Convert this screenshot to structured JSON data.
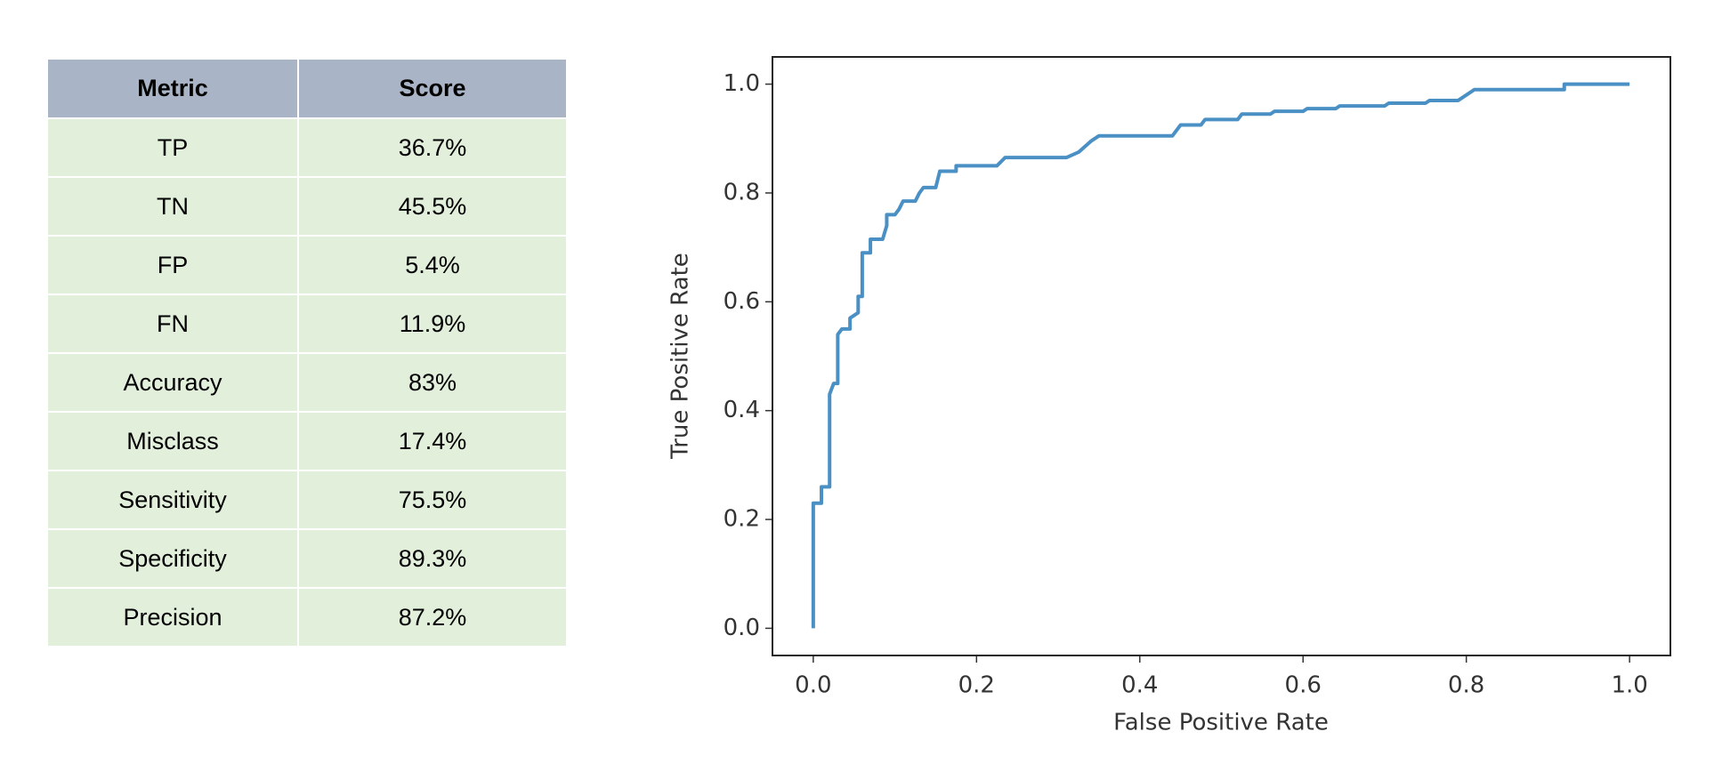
{
  "table": {
    "header": [
      "Metric",
      "Score"
    ],
    "rows": [
      [
        "TP",
        "36.7%"
      ],
      [
        "TN",
        "45.5%"
      ],
      [
        "FP",
        "5.4%"
      ],
      [
        "FN",
        "11.9%"
      ],
      [
        "Accuracy",
        "83%"
      ],
      [
        "Misclass",
        "17.4%"
      ],
      [
        "Sensitivity",
        "75.5%"
      ],
      [
        "Specificity",
        "89.3%"
      ],
      [
        "Precision",
        "87.2%"
      ]
    ]
  },
  "chart_data": {
    "type": "line",
    "x_label": "False Positive Rate",
    "y_label": "True Positive Rate",
    "xlim": [
      -0.05,
      1.05
    ],
    "ylim": [
      -0.05,
      1.05
    ],
    "xticks": [
      {
        "value": 0,
        "label": "0.0"
      },
      0.2,
      0.4,
      0.6,
      0.8,
      {
        "value": 1,
        "label": "1.0"
      }
    ],
    "yticks": [
      {
        "value": 0,
        "label": "0.0"
      },
      0.2,
      0.4,
      0.6,
      0.8,
      {
        "value": 1,
        "label": "1.0"
      }
    ],
    "grid": false,
    "x": [
      0,
      0,
      0.01,
      0.01,
      0.02,
      0.02,
      0.025,
      0.03,
      0.03,
      0.035,
      0.045,
      0.045,
      0.055,
      0.055,
      0.06,
      0.06,
      0.07,
      0.07,
      0.085,
      0.09,
      0.09,
      0.1,
      0.105,
      0.11,
      0.125,
      0.13,
      0.135,
      0.15,
      0.155,
      0.175,
      0.175,
      0.225,
      0.235,
      0.31,
      0.325,
      0.34,
      0.35,
      0.44,
      0.45,
      0.475,
      0.48,
      0.52,
      0.525,
      0.56,
      0.565,
      0.6,
      0.605,
      0.64,
      0.645,
      0.7,
      0.705,
      0.75,
      0.755,
      0.79,
      0.8,
      0.81,
      0.92,
      0.92,
      1.0
    ],
    "series": [
      {
        "color": "#4a90c4",
        "values": [
          0,
          0.23,
          0.23,
          0.26,
          0.26,
          0.43,
          0.45,
          0.45,
          0.54,
          0.55,
          0.55,
          0.57,
          0.58,
          0.61,
          0.61,
          0.69,
          0.69,
          0.715,
          0.715,
          0.74,
          0.76,
          0.76,
          0.77,
          0.785,
          0.785,
          0.8,
          0.81,
          0.81,
          0.84,
          0.84,
          0.85,
          0.85,
          0.865,
          0.865,
          0.875,
          0.895,
          0.905,
          0.905,
          0.925,
          0.925,
          0.935,
          0.935,
          0.945,
          0.945,
          0.95,
          0.95,
          0.955,
          0.955,
          0.96,
          0.96,
          0.965,
          0.965,
          0.97,
          0.97,
          0.98,
          0.99,
          0.99,
          1.0,
          1.0
        ]
      }
    ]
  }
}
